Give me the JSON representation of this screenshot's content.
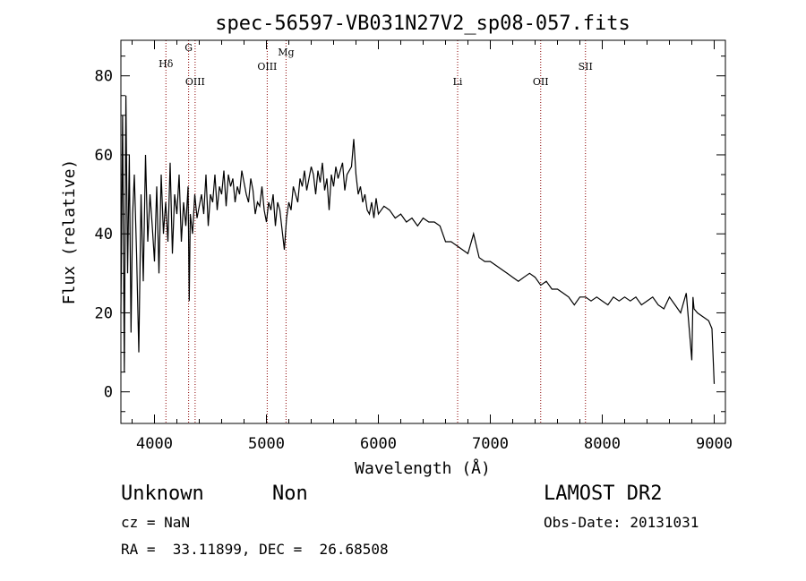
{
  "chart_data": {
    "type": "line",
    "title": "spec-56597-VB031N27V2_sp08-057.fits",
    "xlabel": "Wavelength (Å)",
    "ylabel": "Flux (relative)",
    "xlim": [
      3700,
      9100
    ],
    "ylim": [
      -8,
      89
    ],
    "xticks": [
      4000,
      5000,
      6000,
      7000,
      8000,
      9000
    ],
    "yticks": [
      0,
      20,
      40,
      60,
      80
    ],
    "grid": false,
    "legend": "none",
    "line_color": "#000000",
    "marker_color": "#8b0000",
    "spectral_lines": [
      {
        "name": "Hδ",
        "wavelength": 4102
      },
      {
        "name": "G",
        "wavelength": 4305
      },
      {
        "name": "OIII",
        "wavelength": 4363
      },
      {
        "name": "OIII",
        "wavelength": 5007
      },
      {
        "name": "Mg",
        "wavelength": 5175
      },
      {
        "name": "Li",
        "wavelength": 6708
      },
      {
        "name": "OII",
        "wavelength": 7450
      },
      {
        "name": "SII",
        "wavelength": 7850
      }
    ],
    "series": [
      {
        "x": [
          3700,
          3715,
          3730,
          3745,
          3760,
          3775,
          3790,
          3805,
          3820,
          3840,
          3860,
          3880,
          3900,
          3920,
          3940,
          3960,
          3980,
          4000,
          4020,
          4040,
          4060,
          4080,
          4100,
          4120,
          4140,
          4160,
          4180,
          4200,
          4220,
          4240,
          4260,
          4280,
          4300,
          4310,
          4320,
          4340,
          4360,
          4380,
          4400,
          4420,
          4440,
          4460,
          4480,
          4500,
          4520,
          4540,
          4560,
          4580,
          4600,
          4620,
          4640,
          4660,
          4680,
          4700,
          4720,
          4740,
          4760,
          4780,
          4800,
          4820,
          4840,
          4860,
          4880,
          4900,
          4920,
          4940,
          4960,
          4980,
          5000,
          5020,
          5040,
          5060,
          5080,
          5100,
          5120,
          5140,
          5160,
          5180,
          5200,
          5220,
          5240,
          5260,
          5280,
          5300,
          5320,
          5340,
          5360,
          5380,
          5400,
          5420,
          5440,
          5460,
          5480,
          5500,
          5520,
          5540,
          5560,
          5580,
          5600,
          5620,
          5640,
          5660,
          5680,
          5700,
          5720,
          5740,
          5760,
          5780,
          5800,
          5820,
          5840,
          5860,
          5880,
          5900,
          5920,
          5940,
          5960,
          5980,
          6000,
          6050,
          6100,
          6150,
          6200,
          6250,
          6300,
          6350,
          6400,
          6450,
          6500,
          6550,
          6600,
          6650,
          6700,
          6750,
          6800,
          6850,
          6900,
          6950,
          7000,
          7050,
          7100,
          7150,
          7200,
          7250,
          7300,
          7350,
          7400,
          7450,
          7500,
          7550,
          7600,
          7650,
          7700,
          7750,
          7800,
          7850,
          7900,
          7950,
          8000,
          8050,
          8100,
          8150,
          8200,
          8250,
          8300,
          8350,
          8400,
          8450,
          8500,
          8550,
          8600,
          8650,
          8700,
          8750,
          8800,
          8810,
          8820,
          8850,
          8900,
          8950,
          8980,
          9000
        ],
        "y": [
          20,
          70,
          5,
          75,
          30,
          60,
          15,
          45,
          55,
          35,
          10,
          50,
          28,
          60,
          38,
          50,
          42,
          33,
          52,
          30,
          55,
          40,
          48,
          38,
          58,
          35,
          50,
          45,
          55,
          38,
          48,
          42,
          52,
          23,
          45,
          40,
          50,
          44,
          47,
          50,
          45,
          55,
          42,
          50,
          48,
          55,
          46,
          52,
          50,
          56,
          47,
          55,
          52,
          54,
          48,
          52,
          50,
          56,
          53,
          50,
          48,
          54,
          51,
          45,
          48,
          47,
          52,
          46,
          43,
          48,
          46,
          50,
          42,
          48,
          46,
          41,
          36,
          44,
          48,
          46,
          52,
          50,
          48,
          54,
          52,
          56,
          51,
          54,
          57,
          55,
          50,
          56,
          53,
          58,
          51,
          54,
          46,
          55,
          52,
          57,
          54,
          56,
          58,
          51,
          55,
          56,
          57,
          64,
          55,
          50,
          52,
          48,
          50,
          46,
          45,
          48,
          44,
          49,
          45,
          47,
          46,
          44,
          45,
          43,
          44,
          42,
          44,
          43,
          43,
          42,
          38,
          38,
          37,
          36,
          35,
          40,
          34,
          33,
          33,
          32,
          31,
          30,
          29,
          28,
          29,
          30,
          29,
          27,
          28,
          26,
          26,
          25,
          24,
          22,
          24,
          24,
          23,
          24,
          23,
          22,
          24,
          23,
          24,
          23,
          24,
          22,
          23,
          24,
          22,
          21,
          24,
          22,
          20,
          25,
          8,
          24,
          21,
          20,
          19,
          18,
          16,
          2
        ]
      }
    ]
  },
  "info": {
    "object_class": "Unknown",
    "subclass": "Non",
    "survey": "LAMOST DR2",
    "cz": "cz = NaN",
    "obs_date": "Obs-Date: 20131031",
    "coords": "RA =  33.11899, DEC =  26.68508"
  }
}
